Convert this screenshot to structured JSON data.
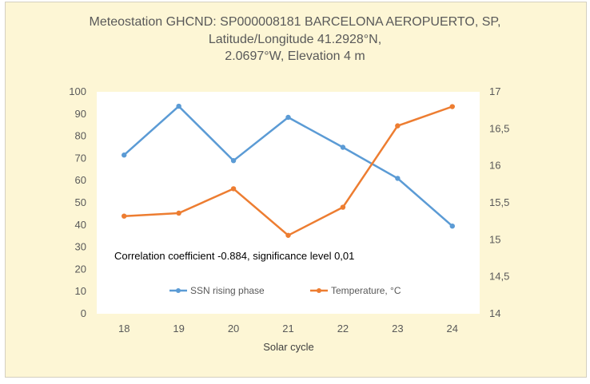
{
  "chart_data": {
    "type": "line",
    "title_lines": [
      "Meteostation GHCND: SP000008181 BARCELONA AEROPUERTO, SP,",
      "Latitude/Longitude 41.2928°N,",
      "2.0697°W, Elevation 4 m"
    ],
    "xlabel": "Solar cycle",
    "categories": [
      "18",
      "19",
      "20",
      "21",
      "22",
      "23",
      "24"
    ],
    "y_left": {
      "min": 0,
      "max": 100,
      "step": 10,
      "ticks": [
        "0",
        "10",
        "20",
        "30",
        "40",
        "50",
        "60",
        "70",
        "80",
        "90",
        "100"
      ]
    },
    "y_right": {
      "min": 14,
      "max": 17,
      "step": 0.5,
      "ticks": [
        "14",
        "14,5",
        "15",
        "15,5",
        "16",
        "16,5",
        "17"
      ]
    },
    "series": [
      {
        "name": "SSN  rising  phase",
        "axis": "left",
        "color": "#5b9bd5",
        "values": [
          71.5,
          93.5,
          69,
          88.5,
          75,
          61,
          39.5
        ]
      },
      {
        "name": "Temperature,  °C",
        "axis": "right",
        "color": "#ed7d31",
        "values": [
          15.32,
          15.36,
          15.69,
          15.06,
          15.44,
          16.54,
          16.8
        ]
      }
    ],
    "annotation": "Correlation  coefficient  -0.884,  significance  level  0,01",
    "grid": false,
    "legend": "bottom-center inside plot"
  }
}
